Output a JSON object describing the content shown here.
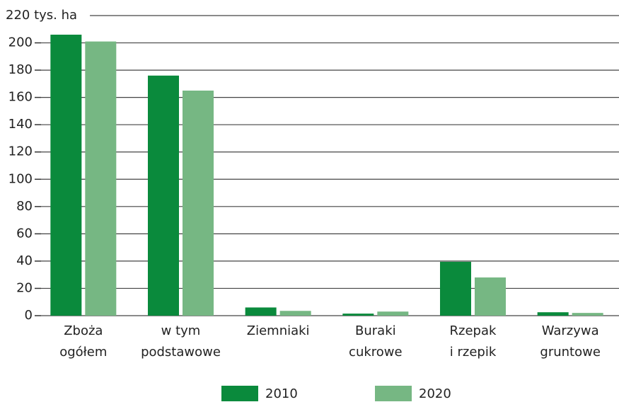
{
  "chart_data": {
    "type": "bar",
    "categories": [
      [
        "Zboża",
        "ogółem"
      ],
      [
        "w tym",
        "podstawowe"
      ],
      [
        "Ziemniaki"
      ],
      [
        "Buraki",
        "cukrowe"
      ],
      [
        "Rzepak",
        "i rzepik"
      ],
      [
        "Warzywa",
        "gruntowe"
      ]
    ],
    "series": [
      {
        "name": "2010",
        "color": "#0a8a3c",
        "values": [
          206,
          176,
          6,
          1.5,
          39.5,
          2.5
        ]
      },
      {
        "name": "2020",
        "color": "#76b783",
        "values": [
          201,
          165,
          3.5,
          3,
          28,
          2
        ]
      }
    ],
    "ylim": [
      0,
      220
    ],
    "yticks": [
      0,
      20,
      40,
      60,
      80,
      100,
      120,
      140,
      160,
      180,
      200,
      {
        "value": 220,
        "label": "220 tys. ha"
      }
    ],
    "grid": true,
    "legend": "bottom"
  }
}
